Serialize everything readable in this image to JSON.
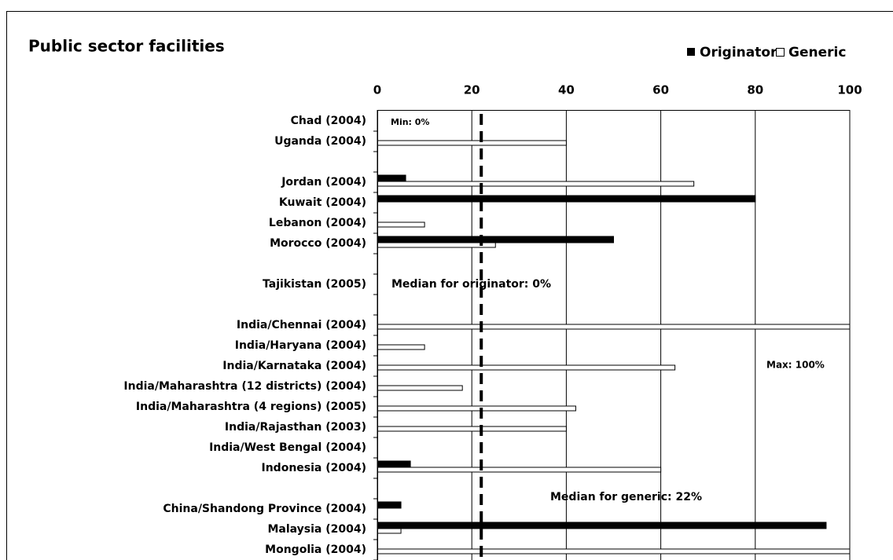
{
  "chart_data": {
    "type": "bar",
    "orientation": "horizontal",
    "title": "Public sector facilities",
    "categories": [
      "Chad (2004)",
      "Uganda (2004)",
      null,
      "Jordan (2004)",
      "Kuwait (2004)",
      "Lebanon (2004)",
      "Morocco (2004)",
      null,
      "Tajikistan (2005)",
      null,
      "India/Chennai (2004)",
      "India/Haryana (2004)",
      "India/Karnataka (2004)",
      "India/Maharashtra (12 districts) (2004)",
      "India/Maharashtra (4 regions) (2005)",
      "India/Rajasthan (2003)",
      "India/West Bengal (2004)",
      "Indonesia (2004)",
      null,
      "China/Shandong Province (2004)",
      "Malaysia (2004)",
      "Mongolia (2004)"
    ],
    "series": [
      {
        "name": "Originator",
        "color": "#000000",
        "values": [
          0,
          0,
          null,
          6,
          80,
          0,
          50,
          null,
          0,
          null,
          0,
          0,
          0,
          0,
          0,
          0,
          0,
          7,
          null,
          5,
          95,
          0
        ]
      },
      {
        "name": "Generic",
        "color": "#ffffff",
        "values": [
          0,
          40,
          null,
          67,
          0,
          10,
          25,
          null,
          0,
          null,
          100,
          10,
          63,
          18,
          42,
          40,
          0,
          60,
          null,
          0,
          5,
          100
        ]
      }
    ],
    "xlim": [
      0,
      100
    ],
    "xticks": [
      0,
      20,
      40,
      60,
      80,
      100
    ],
    "grid": true,
    "median_line": 22,
    "annotations": [
      "Min: 0%",
      "Median for originator: 0%",
      "Median for generic: 22%",
      "Max: 100%"
    ]
  }
}
